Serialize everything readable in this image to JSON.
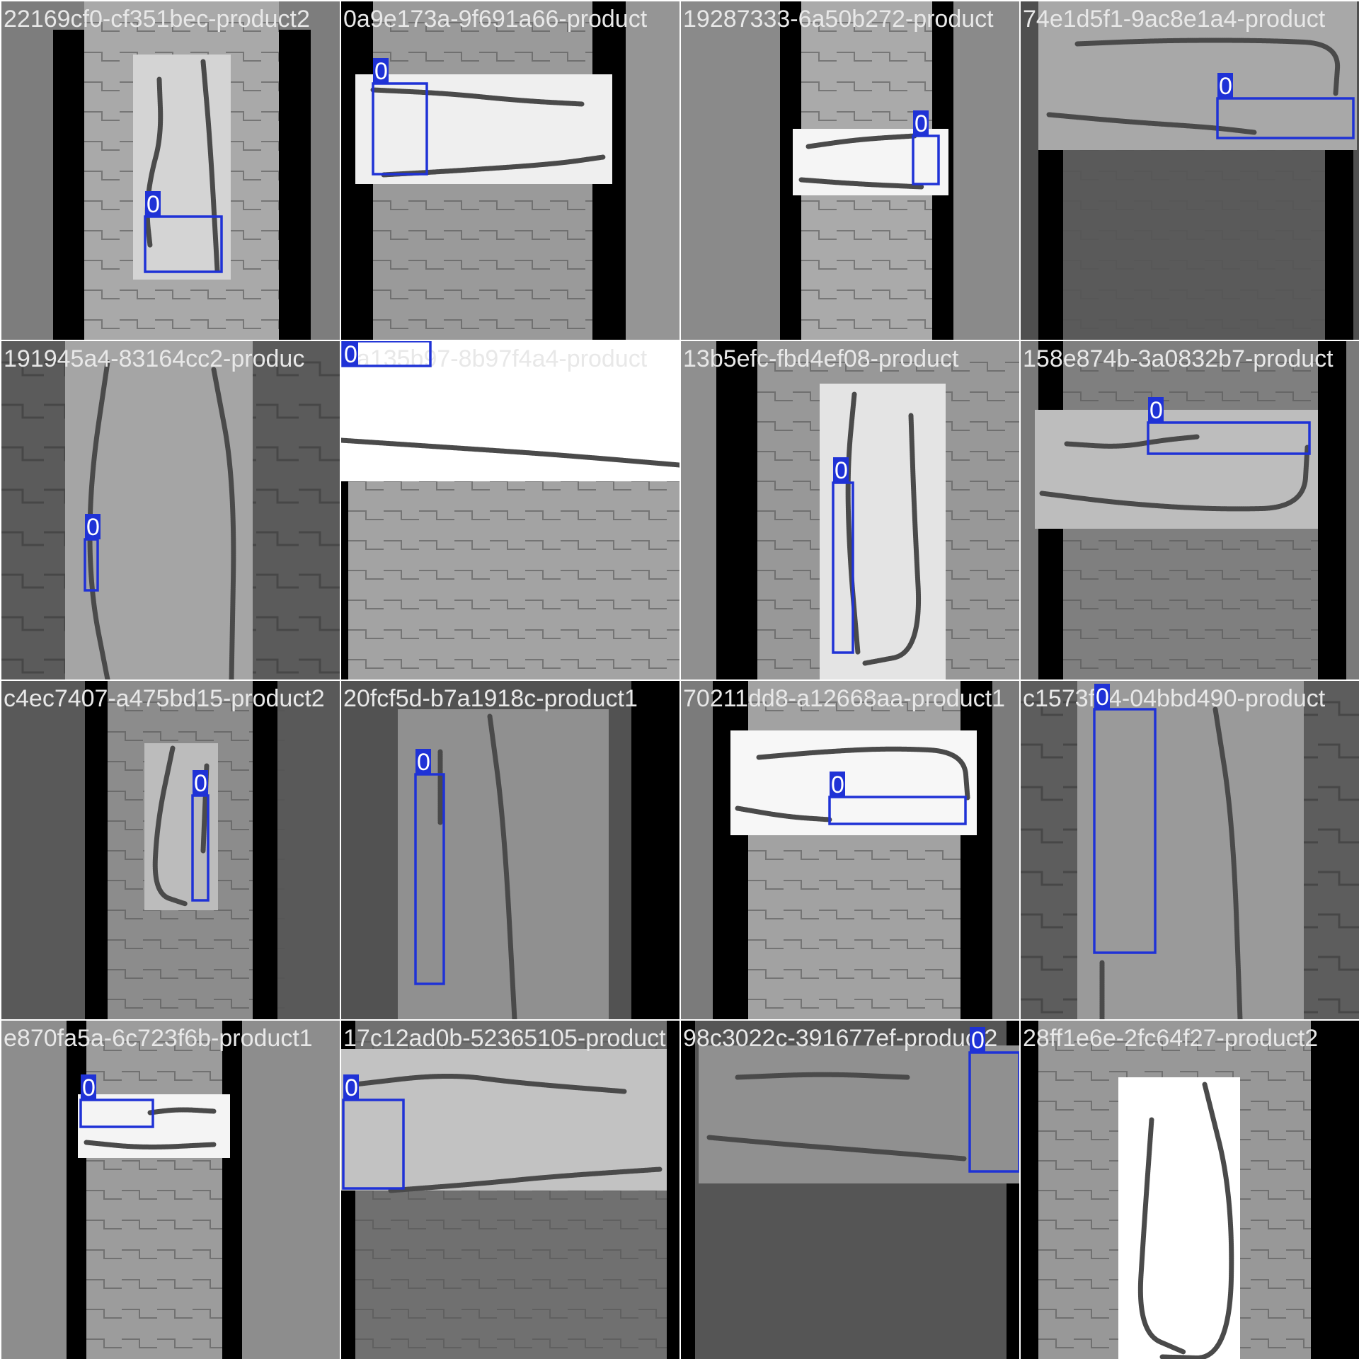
{
  "palette": {
    "box": "#1f32d6",
    "label_text": "#ffffff",
    "caption_text": "#e8e8e8",
    "wire": "#4a4a4a",
    "rail": "#000000",
    "separator": "#ffffff"
  },
  "tiles": [
    {
      "caption": "22169cf0-cf351bec-product2",
      "bg": "#7d7d7d",
      "belt": "#a9a9a9",
      "rails": true,
      "sheet": "#d4d4d4",
      "sheet_shape": "portrait",
      "wire": "portrait_loop_open",
      "box": {
        "label": "0"
      }
    },
    {
      "caption": "0a9e173a-9f691a66-product",
      "bg": "#959595",
      "belt": "#9a9a9a",
      "rails": true,
      "sheet": "#efefef",
      "sheet_shape": "landscape",
      "wire": "landscape_loop",
      "box": {
        "label": "0"
      }
    },
    {
      "caption": "19287333-6a50b272-product",
      "bg": "#8a8a8a",
      "belt": "#aaaaaa",
      "rails": true,
      "sheet": "#f5f5f5",
      "sheet_shape": "landscape_small",
      "wire": "landscape_loop",
      "box": {
        "label": "0"
      }
    },
    {
      "caption": "74e1d5f1-9ac8e1a4-product",
      "bg": "#4f4f4f",
      "belt": "#5a5a5a",
      "rails": true,
      "sheet": "#a8a8a8",
      "sheet_shape": "landscape_top",
      "wire": "landscape_loop",
      "box": {
        "label": "0"
      }
    },
    {
      "caption": "191945a4-83164cc2-produc",
      "bg": "#5b5b5b",
      "belt": "#666666",
      "rails": false,
      "sheet": "#a5a5a5",
      "sheet_shape": "portrait_big",
      "wire": "portrait_big",
      "box": {
        "label": "0"
      }
    },
    {
      "caption": "6a135b97-8b97f4a4-product",
      "bg": "#9b9b9b",
      "belt": "#a3a3a3",
      "rails": true,
      "sheet": "#ffffff",
      "sheet_shape": "top_band",
      "wire": "band_line",
      "box": {
        "label": "0"
      }
    },
    {
      "caption": "13b5efc-fbd4ef08-product",
      "bg": "#8f8f8f",
      "belt": "#989898",
      "rails": true,
      "sheet": "#e4e4e4",
      "sheet_shape": "portrait",
      "wire": "portrait_loop_open",
      "box": {
        "label": "0"
      }
    },
    {
      "caption": "158e874b-3a0832b7-product",
      "bg": "#7a7a7a",
      "belt": "#7f7f7f",
      "rails": true,
      "sheet": "#bdbdbd",
      "sheet_shape": "landscape",
      "wire": "landscape_loop",
      "box": {
        "label": "0"
      }
    },
    {
      "caption": "c4ec7407-a475bd15-product2",
      "bg": "#595959",
      "belt": "#8c8c8c",
      "rails": true,
      "sheet": "#bcbcbc",
      "sheet_shape": "portrait_small",
      "wire": "portrait_loop_open",
      "box": {
        "label": "0"
      }
    },
    {
      "caption": "20fcf5d-b7a1918c-product1",
      "bg": "#525252",
      "belt": "#565656",
      "rails": true,
      "sheet": "#909090",
      "sheet_shape": "portrait_big",
      "wire": "portrait_big",
      "box": {
        "label": "0"
      }
    },
    {
      "caption": "70211dd8-a12668aa-product1",
      "bg": "#7b7b7b",
      "belt": "#a2a2a2",
      "rails": true,
      "sheet": "#f7f7f7",
      "sheet_shape": "landscape",
      "wire": "landscape_loop",
      "box": {
        "label": "0"
      }
    },
    {
      "caption": "c1573f04-04bbd490-product",
      "bg": "#5d5d5d",
      "belt": "#6a6a6a",
      "rails": false,
      "sheet": "#9a9a9a",
      "sheet_shape": "portrait_big",
      "wire": "portrait_big",
      "box": {
        "label": "0"
      }
    },
    {
      "caption": "e870fa5a-6c723f6b-product1",
      "bg": "#8d8d8d",
      "belt": "#9c9c9c",
      "rails": true,
      "sheet": "#f4f4f4",
      "sheet_shape": "landscape_small",
      "wire": "landscape_loop",
      "box": {
        "label": "0"
      }
    },
    {
      "caption": "17c12ad0b-52365105-product",
      "bg": "#6e6e6e",
      "belt": "#707070",
      "rails": true,
      "sheet": "#c2c2c2",
      "sheet_shape": "landscape_top",
      "wire": "landscape_loop",
      "box": {
        "label": "0"
      }
    },
    {
      "caption": "98c3022c-391677ef-product2",
      "bg": "#505050",
      "belt": "#555555",
      "rails": true,
      "sheet": "#909090",
      "sheet_shape": "landscape_top",
      "wire": "landscape_loop",
      "box": {
        "label": "0"
      }
    },
    {
      "caption": "28ff1e6e-2fc64f27-product2",
      "bg": "#8e8e8e",
      "belt": "#989898",
      "rails": true,
      "sheet": "#ffffff",
      "sheet_shape": "portrait_big",
      "wire": "portrait_big",
      "box": null
    }
  ]
}
